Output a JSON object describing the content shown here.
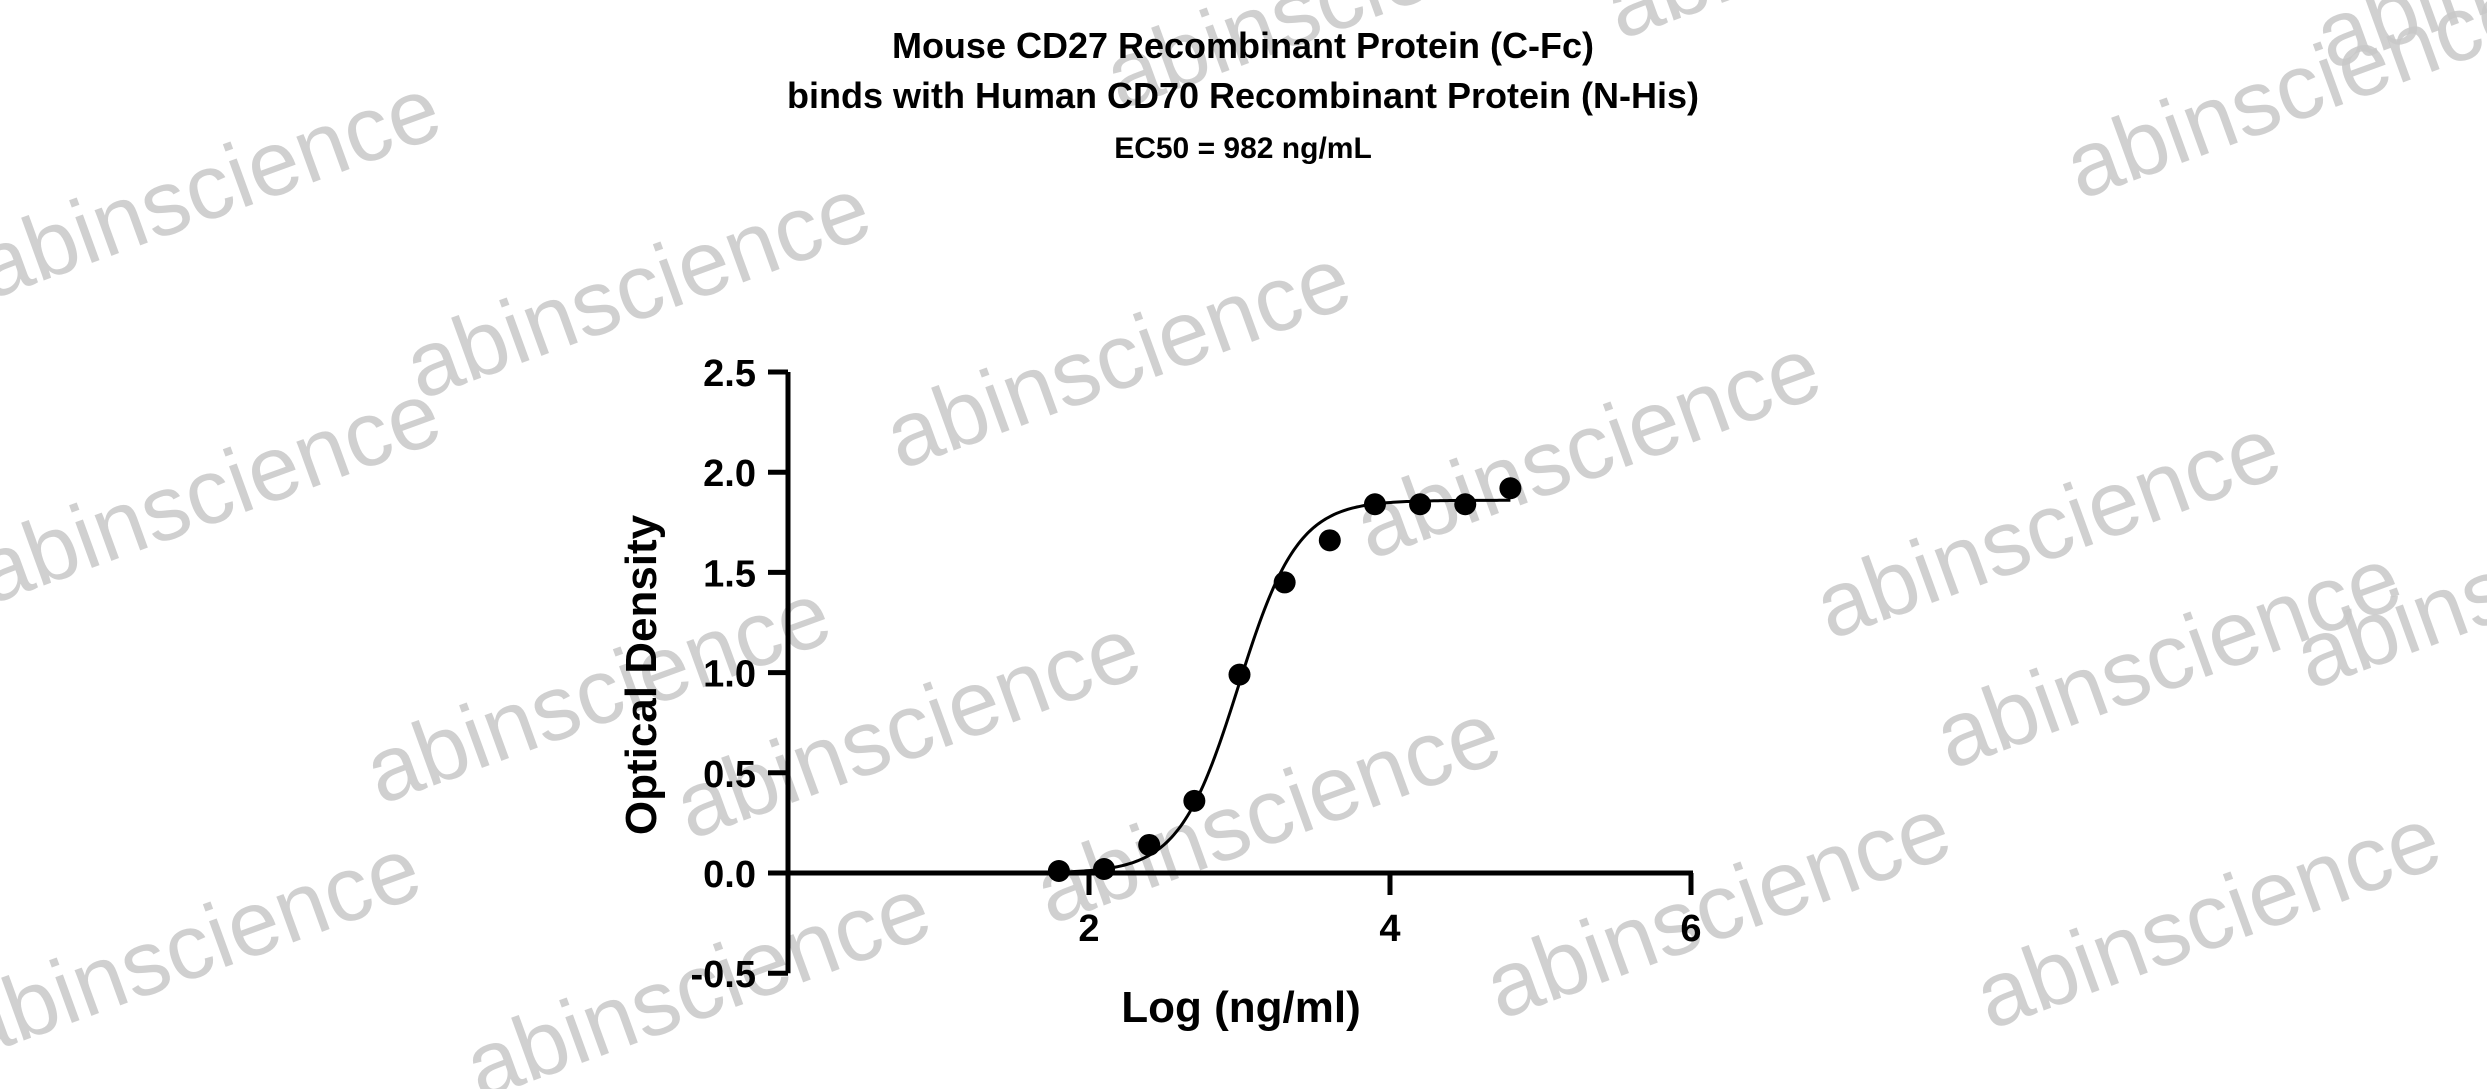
{
  "chart_data": {
    "type": "scatter",
    "title": "Mouse CD27 Recombinant Protein (C-Fc)",
    "title_line2": "binds with Human CD70 Recombinant Protein (N-His)",
    "subtitle": "EC50 = 982 ng/mL",
    "xlabel": "Log (ng/ml)",
    "ylabel": "Optical Density",
    "xlim": [
      0,
      6
    ],
    "ylim": [
      -0.5,
      2.5
    ],
    "x_ticks": [
      2,
      4,
      6
    ],
    "y_ticks": [
      -0.5,
      0.0,
      0.5,
      1.0,
      1.5,
      2.0,
      2.5
    ],
    "y_tick_labels": [
      "-0.5",
      "0.0",
      "0.5",
      "1.0",
      "1.5",
      "2.0",
      "2.5"
    ],
    "grid": false,
    "legend": "none",
    "points": [
      {
        "x": 1.8,
        "y": 0.01
      },
      {
        "x": 2.1,
        "y": 0.02
      },
      {
        "x": 2.4,
        "y": 0.14
      },
      {
        "x": 2.7,
        "y": 0.36
      },
      {
        "x": 3.0,
        "y": 0.99
      },
      {
        "x": 3.3,
        "y": 1.45
      },
      {
        "x": 3.6,
        "y": 1.66
      },
      {
        "x": 3.9,
        "y": 1.84
      },
      {
        "x": 4.2,
        "y": 1.84
      },
      {
        "x": 4.5,
        "y": 1.84
      },
      {
        "x": 4.8,
        "y": 1.92
      }
    ],
    "fit_curve": {
      "model": "4PL",
      "bottom": 0.0,
      "top": 1.86,
      "logEC50": 2.992,
      "hill": 2.2,
      "x_range": [
        1.8,
        4.8
      ]
    },
    "colors": {
      "points": "#000000",
      "curve": "#000000",
      "axes": "#000000",
      "watermark": "#c8c8c8"
    }
  },
  "watermark_text": "abinscience"
}
